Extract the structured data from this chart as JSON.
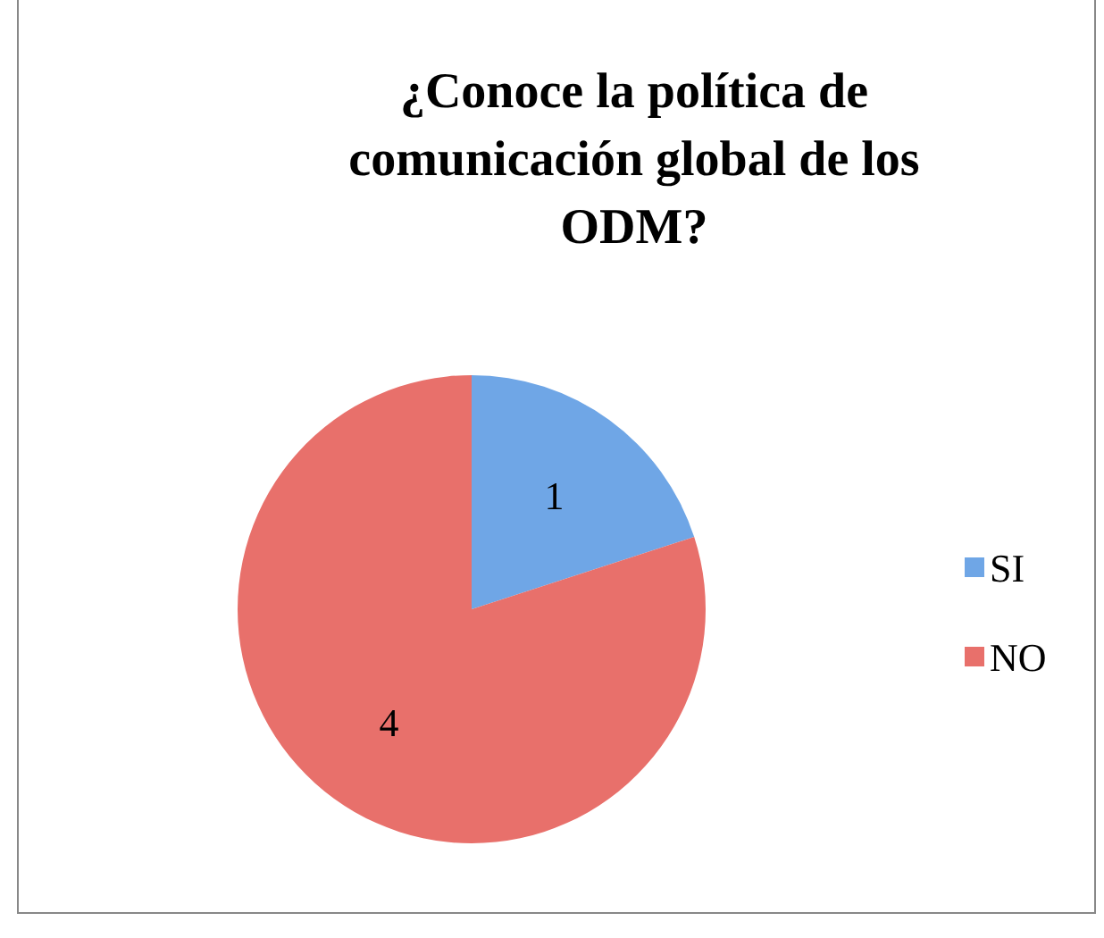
{
  "chart_data": {
    "type": "pie",
    "title": "¿Conoce la política de comunicación global de los ODM?",
    "categories": [
      "SI",
      "NO"
    ],
    "values": [
      1,
      4
    ],
    "colors": [
      "#6fa6e6",
      "#e8706b"
    ],
    "data_labels": true,
    "legend": "right"
  }
}
